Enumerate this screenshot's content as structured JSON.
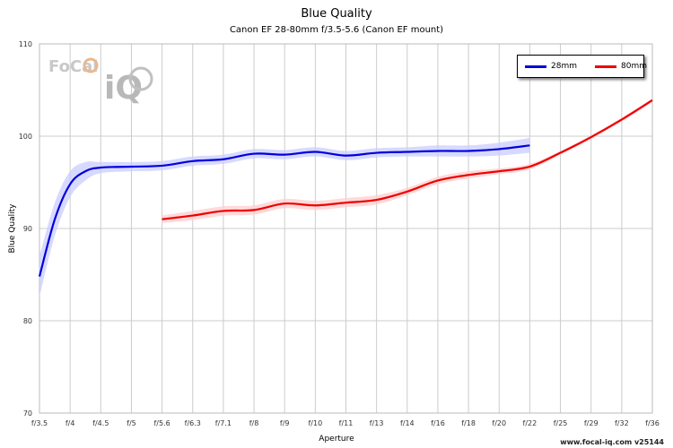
{
  "logo": {
    "focal_text": "FoCal",
    "iq_text": "iQ"
  },
  "watermark": "www.focal-iq.com  v25144",
  "colors": {
    "series_28mm": "#0000dd",
    "series_80mm": "#ee0000",
    "band_28mm": "#c9ccff",
    "band_80mm": "#ffcccc",
    "grid": "#cccccc"
  },
  "chart_data": {
    "type": "line",
    "title": "Blue Quality",
    "subtitle": "Canon EF 28-80mm f/3.5-5.6 (Canon EF mount)",
    "xlabel": "Aperture",
    "ylabel": "Blue Quality",
    "categories": [
      "f/3.5",
      "f/4",
      "f/4.5",
      "f/5",
      "f/5.6",
      "f/6.3",
      "f/7.1",
      "f/8",
      "f/9",
      "f/10",
      "f/11",
      "f/13",
      "f/14",
      "f/16",
      "f/18",
      "f/20",
      "f/22",
      "f/25",
      "f/29",
      "f/32",
      "f/36"
    ],
    "ylim": [
      70,
      110
    ],
    "yticks": [
      70,
      80,
      90,
      100,
      110
    ],
    "grid": true,
    "legend_position": "top-right",
    "series": [
      {
        "name": "28mm",
        "x": [
          0,
          0.5,
          1,
          1.5,
          2,
          3,
          4,
          5,
          6,
          7,
          8,
          9,
          10,
          11,
          12,
          13,
          14,
          15,
          16
        ],
        "values": [
          84.8,
          91.0,
          94.8,
          96.2,
          96.6,
          96.7,
          96.8,
          97.3,
          97.5,
          98.1,
          98.0,
          98.3,
          97.9,
          98.2,
          98.3,
          98.4,
          98.4,
          98.6,
          99.0
        ],
        "band": [
          2.2,
          1.8,
          1.4,
          1.0,
          0.6,
          0.5,
          0.5,
          0.5,
          0.5,
          0.5,
          0.5,
          0.5,
          0.5,
          0.5,
          0.5,
          0.6,
          0.6,
          0.7,
          0.8
        ]
      },
      {
        "name": "80mm",
        "x": [
          4,
          5,
          6,
          7,
          8,
          9,
          10,
          11,
          12,
          13,
          14,
          15,
          16,
          17,
          18,
          19,
          20
        ],
        "values": [
          91.0,
          91.4,
          91.9,
          92.0,
          92.7,
          92.5,
          92.8,
          93.1,
          94.0,
          95.2,
          95.8,
          96.2,
          96.7,
          98.2,
          99.9,
          101.8,
          103.9
        ],
        "band": [
          0.4,
          0.5,
          0.5,
          0.5,
          0.5,
          0.5,
          0.5,
          0.5,
          0.4,
          0.4,
          0.4,
          0.3,
          0.3,
          0.2,
          0.2,
          0.2,
          0.2
        ]
      }
    ]
  }
}
